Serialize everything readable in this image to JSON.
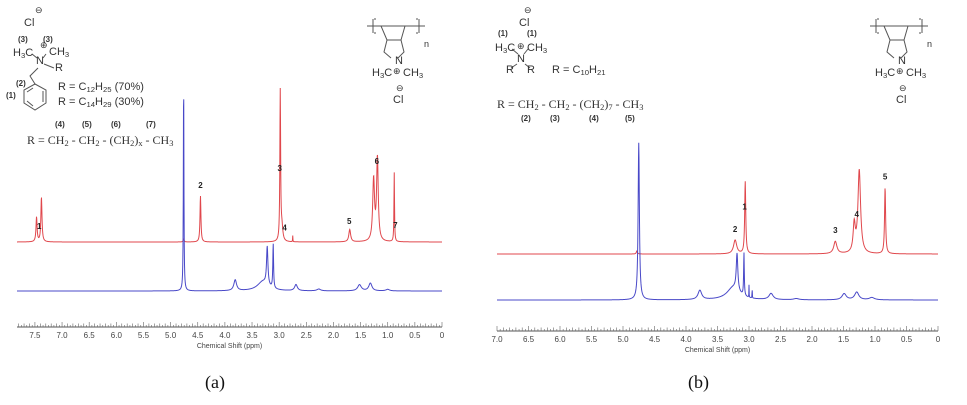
{
  "panels": [
    {
      "caption": "(a)",
      "structure": {
        "chloride": "Cl",
        "anion_charge": "⊖",
        "cation_charge": "⊕",
        "methyl_labels": [
          "(3)",
          "(3)"
        ],
        "left_methyl": [
          {
            "t": "H"
          },
          {
            "s": "3"
          },
          {
            "t": "C"
          }
        ],
        "right_methyl": [
          {
            "t": "CH"
          },
          {
            "s": "3"
          }
        ],
        "nitrogen": "N",
        "substituent": "R",
        "benzyl_label": "(2)",
        "ring_label": "(1)",
        "r_def_1": [
          {
            "t": "R = C"
          },
          {
            "s": "12"
          },
          {
            "t": "H"
          },
          {
            "s": "25"
          },
          {
            "t": " (70%)"
          }
        ],
        "r_def_2": [
          {
            "t": "R = C"
          },
          {
            "s": "14"
          },
          {
            "t": "H"
          },
          {
            "s": "29"
          },
          {
            "t": " (30%)"
          }
        ],
        "chain_labels": [
          "(4)",
          "(5)",
          "(6)",
          "(7)"
        ],
        "chain": [
          {
            "t": "R =  CH"
          },
          {
            "s": "2"
          },
          {
            "t": " - CH"
          },
          {
            "s": "2"
          },
          {
            "t": " - (CH"
          },
          {
            "s": "2"
          },
          {
            "t": ")"
          },
          {
            "s": "x"
          },
          {
            "t": " - CH"
          },
          {
            "s": "3"
          }
        ]
      }
    },
    {
      "caption": "(b)",
      "structure": {
        "chloride": "Cl",
        "anion_charge": "⊖",
        "cation_charge": "⊕",
        "methyl_labels": [
          "(1)",
          "(1)"
        ],
        "left_methyl": [
          {
            "t": "H"
          },
          {
            "s": "3"
          },
          {
            "t": "C"
          }
        ],
        "right_methyl": [
          {
            "t": "CH"
          },
          {
            "s": "3"
          }
        ],
        "nitrogen": "N",
        "substituents": [
          "R",
          "R"
        ],
        "r_def": [
          {
            "t": "R = C"
          },
          {
            "s": "10"
          },
          {
            "t": "H"
          },
          {
            "s": "21"
          }
        ],
        "chain": [
          {
            "t": "R =  CH"
          },
          {
            "s": "2"
          },
          {
            "t": " - CH"
          },
          {
            "s": "2"
          },
          {
            "t": " - (CH"
          },
          {
            "s": "2"
          },
          {
            "t": ")"
          },
          {
            "s": "7"
          },
          {
            "t": " - CH"
          },
          {
            "s": "3"
          }
        ],
        "chain_labels": [
          "(2)",
          "(3)",
          "(4)",
          "(5)"
        ]
      }
    }
  ],
  "polymer": {
    "repeat": "n",
    "nitrogen": "N",
    "left_methyl": [
      {
        "t": "H"
      },
      {
        "s": "3"
      },
      {
        "t": "C"
      }
    ],
    "right_methyl": [
      {
        "t": "CH"
      },
      {
        "s": "3"
      }
    ],
    "cation_charge": "⊕",
    "chloride": "Cl",
    "anion_charge": "⊖"
  },
  "chart_data": [
    {
      "type": "line",
      "xlabel": "Chemical Shift (ppm)",
      "xlim": [
        7.83,
        0
      ],
      "x_reversed": true,
      "tick_labels": [
        "7.5",
        "7.0",
        "6.5",
        "6.0",
        "5.5",
        "5.0",
        "4.5",
        "4.0",
        "3.5",
        "3.0",
        "2.5",
        "2.0",
        "1.5",
        "1.0",
        "0.5",
        "0"
      ],
      "grid": false,
      "colors": {
        "red": "#e0474c",
        "blue": "#4848c8"
      },
      "series": [
        {
          "color": "red",
          "peaks": [
            [
              7.47,
              16,
              0.012
            ],
            [
              7.38,
              29,
              0.012
            ],
            [
              4.76,
              2,
              0.01
            ],
            [
              4.45,
              30,
              0.01
            ],
            [
              2.98,
              100,
              0.008
            ],
            [
              2.95,
              9,
              0.02
            ],
            [
              2.75,
              4,
              0.003
            ],
            [
              1.7,
              8,
              0.02
            ],
            [
              1.26,
              40,
              0.02
            ],
            [
              1.19,
              54,
              0.018
            ],
            [
              0.88,
              45,
              0.006
            ]
          ],
          "labels": [
            {
              "text": "1",
              "ppm": 7.42
            },
            {
              "text": "2",
              "ppm": 4.45
            },
            {
              "text": "3",
              "ppm": 2.99
            },
            {
              "text": "4",
              "ppm": 2.9
            },
            {
              "text": "5",
              "ppm": 1.71
            },
            {
              "text": "6",
              "ppm": 1.2
            },
            {
              "text": "7",
              "ppm": 0.86
            }
          ]
        },
        {
          "color": "blue",
          "peaks": [
            [
              4.76,
              140,
              0.006
            ],
            [
              3.81,
              7,
              0.03
            ],
            [
              3.3,
              6,
              0.12
            ],
            [
              3.22,
              25,
              0.015
            ],
            [
              3.11,
              29,
              0.008
            ],
            [
              2.69,
              4,
              0.03
            ],
            [
              2.27,
              1.2,
              0.04
            ],
            [
              1.52,
              4,
              0.04
            ],
            [
              1.32,
              5,
              0.035
            ],
            [
              1.0,
              1,
              0.04
            ]
          ]
        }
      ]
    },
    {
      "type": "line",
      "xlabel": "Chemical Shift (ppm)",
      "xlim": [
        7.0,
        0
      ],
      "x_reversed": true,
      "tick_labels": [
        "7.0",
        "6.5",
        "6.0",
        "5.5",
        "5.0",
        "4.5",
        "4.0",
        "3.5",
        "3.0",
        "2.5",
        "2.0",
        "1.5",
        "1.0",
        "0.5",
        "0"
      ],
      "grid": false,
      "colors": {
        "red": "#e0474c",
        "blue": "#4848c8"
      },
      "series": [
        {
          "color": "red",
          "peaks": [
            [
              4.78,
              2,
              0.01
            ],
            [
              3.22,
              9,
              0.03
            ],
            [
              3.06,
              47,
              0.01
            ],
            [
              1.63,
              8,
              0.03
            ],
            [
              1.33,
              18,
              0.02
            ],
            [
              1.25,
              54,
              0.025
            ],
            [
              0.84,
              43,
              0.01
            ]
          ],
          "labels": [
            {
              "text": "2",
              "ppm": 3.22
            },
            {
              "text": "1",
              "ppm": 3.07
            },
            {
              "text": "3",
              "ppm": 1.63
            },
            {
              "text": "4",
              "ppm": 1.29
            },
            {
              "text": "5",
              "ppm": 0.84
            }
          ]
        },
        {
          "color": "blue",
          "peaks": [
            [
              4.75,
              102,
              0.012
            ],
            [
              3.78,
              6,
              0.035
            ],
            [
              3.25,
              8,
              0.12
            ],
            [
              3.19,
              24,
              0.015
            ],
            [
              3.08,
              28,
              0.006
            ],
            [
              3.0,
              8,
              0.002
            ],
            [
              2.95,
              8,
              0.002
            ],
            [
              2.65,
              4,
              0.04
            ],
            [
              2.25,
              0.8,
              0.05
            ],
            [
              1.49,
              4,
              0.04
            ],
            [
              1.29,
              5,
              0.04
            ],
            [
              1.05,
              1.5,
              0.05
            ]
          ]
        }
      ]
    }
  ]
}
